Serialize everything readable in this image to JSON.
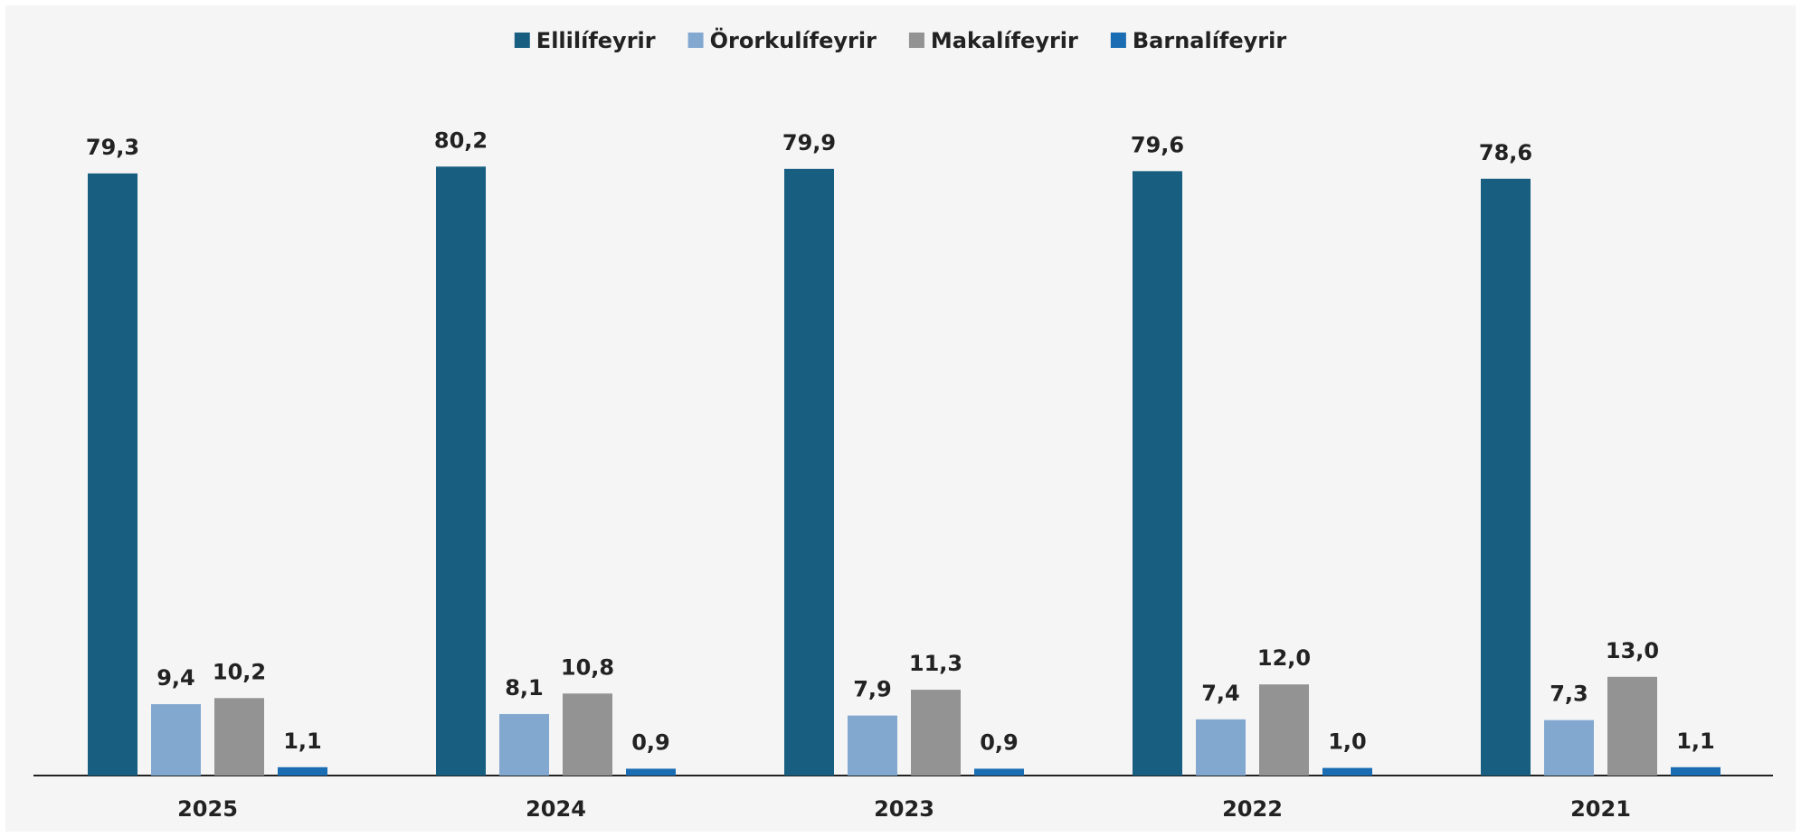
{
  "chart_data": {
    "type": "bar",
    "categories": [
      "2025",
      "2024",
      "2023",
      "2022",
      "2021"
    ],
    "series": [
      {
        "name": "Ellilífeyrir",
        "color": "#175e80",
        "values": [
          79.3,
          80.2,
          79.9,
          79.6,
          78.6
        ],
        "value_labels": [
          "79,3",
          "80,2",
          "79,9",
          "79,6",
          "78,6"
        ]
      },
      {
        "name": "Örorkulífeyrir",
        "color": "#83a8d0",
        "values": [
          9.4,
          8.1,
          7.9,
          7.4,
          7.3
        ],
        "value_labels": [
          "9,4",
          "8,1",
          "7,9",
          "7,4",
          "7,3"
        ]
      },
      {
        "name": "Makalífeyrir",
        "color": "#939393",
        "values": [
          10.2,
          10.8,
          11.3,
          12.0,
          13.0
        ],
        "value_labels": [
          "10,2",
          "10,8",
          "11,3",
          "12,0",
          "13,0"
        ]
      },
      {
        "name": "Barnalífeyrir",
        "color": "#1a6db3",
        "values": [
          1.1,
          0.9,
          0.9,
          1.0,
          1.1
        ],
        "value_labels": [
          "1,1",
          "0,9",
          "0,9",
          "1,0",
          "1,1"
        ]
      }
    ],
    "legend": "top"
  }
}
